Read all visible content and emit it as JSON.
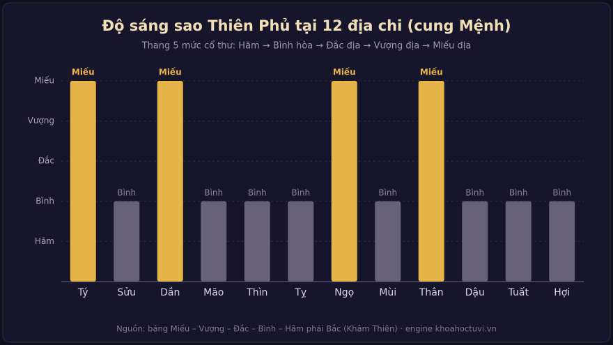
{
  "chart_data": {
    "type": "bar",
    "title": "Độ sáng sao Thiên Phủ tại 12 địa chi (cung Mệnh)",
    "subtitle": "Thang 5 mức cổ thư: Hãm → Bình hòa → Đắc địa → Vượng địa → Miếu địa",
    "source": "Nguồn: bảng Miếu – Vượng – Đắc – Bình – Hãm phái Bắc (Khâm Thiên) · engine khoahoctuvi.vn",
    "categories": [
      "Tý",
      "Sửu",
      "Dần",
      "Mão",
      "Thìn",
      "Tỵ",
      "Ngọ",
      "Mùi",
      "Thân",
      "Dậu",
      "Tuất",
      "Hợi"
    ],
    "values": [
      5,
      2,
      5,
      2,
      2,
      2,
      5,
      2,
      5,
      2,
      2,
      2
    ],
    "value_labels": [
      "Miếu",
      "Bình",
      "Miếu",
      "Bình",
      "Bình",
      "Bình",
      "Miếu",
      "Bình",
      "Miếu",
      "Bình",
      "Bình",
      "Bình"
    ],
    "colors": [
      "#e6b54a",
      "#67617c",
      "#e6b54a",
      "#67617c",
      "#67617c",
      "#67617c",
      "#e6b54a",
      "#67617c",
      "#e6b54a",
      "#67617c",
      "#67617c",
      "#67617c"
    ],
    "ylim": [
      0,
      5
    ],
    "yticks": [
      {
        "value": 1,
        "label": "Hãm"
      },
      {
        "value": 2,
        "label": "Bình"
      },
      {
        "value": 3,
        "label": "Đắc"
      },
      {
        "value": 4,
        "label": "Vượng"
      },
      {
        "value": 5,
        "label": "Miếu"
      }
    ],
    "grid": true
  }
}
